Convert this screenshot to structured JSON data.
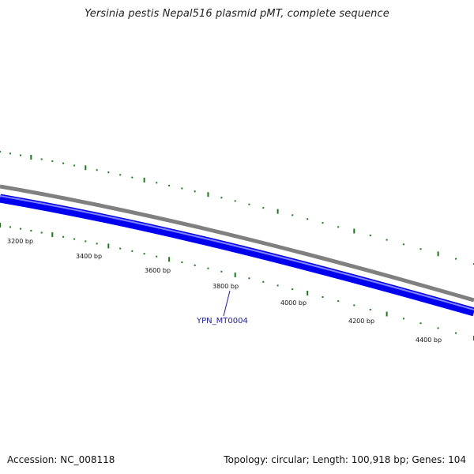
{
  "title": "Yersinia pestis Nepal516 plasmid pMT, complete sequence",
  "footer": {
    "accession": "Accession: NC_008118",
    "summary": "Topology: circular; Length: 100,918 bp; Genes: 104"
  },
  "ruler": {
    "unit": "bp",
    "labels": [
      "3200 bp",
      "3400 bp",
      "3600 bp",
      "3800 bp",
      "4000 bp",
      "4200 bp",
      "4400 bp"
    ]
  },
  "gene": {
    "name": "YPN_MT0004",
    "strand": "reverse"
  },
  "colors": {
    "backbone": "#808080",
    "gene": "#0000ee",
    "gene_highlight": "#8080ff",
    "ticks": "#1a7a1a",
    "gene_label": "#1a1aa6"
  }
}
